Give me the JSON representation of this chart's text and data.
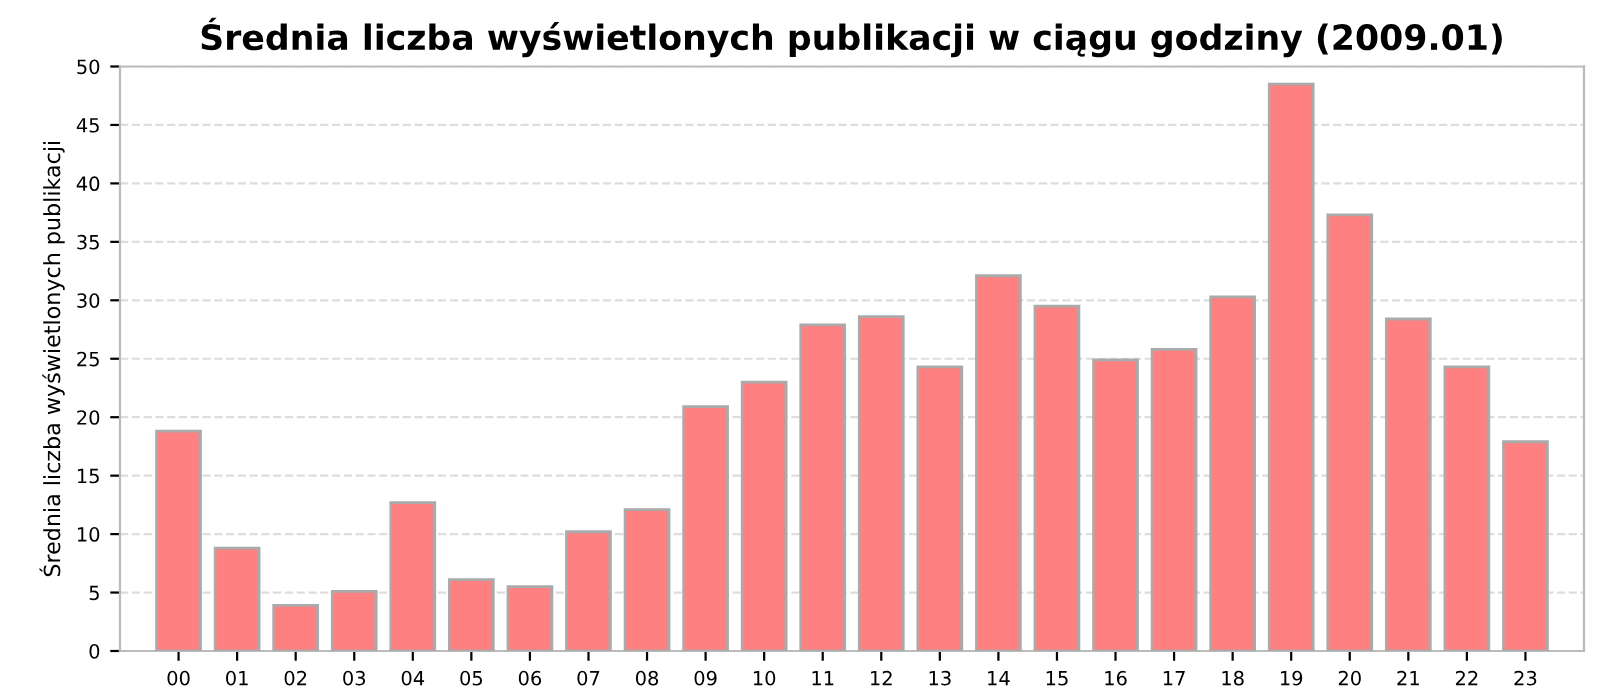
{
  "chart_data": {
    "type": "bar",
    "title": "Średnia liczba wyświetlonych publikacji w ciągu godziny (2009.01)",
    "ylabel": "Średnia liczba wyświetlonych publikacji",
    "categories": [
      "00",
      "01",
      "02",
      "03",
      "04",
      "05",
      "06",
      "07",
      "08",
      "09",
      "10",
      "11",
      "12",
      "13",
      "14",
      "15",
      "16",
      "17",
      "18",
      "19",
      "20",
      "21",
      "22",
      "23"
    ],
    "values": [
      18.8,
      8.8,
      3.9,
      5.1,
      12.7,
      6.1,
      5.5,
      10.2,
      12.1,
      20.9,
      23.0,
      27.9,
      28.6,
      24.3,
      32.1,
      29.5,
      24.9,
      25.8,
      30.3,
      48.5,
      37.3,
      28.4,
      24.3,
      17.9
    ],
    "color": "#ff8080",
    "ylim": [
      0,
      50
    ],
    "yticks": [
      0,
      5,
      10,
      15,
      20,
      25,
      30,
      35,
      40,
      45,
      50
    ],
    "grid": "y"
  }
}
